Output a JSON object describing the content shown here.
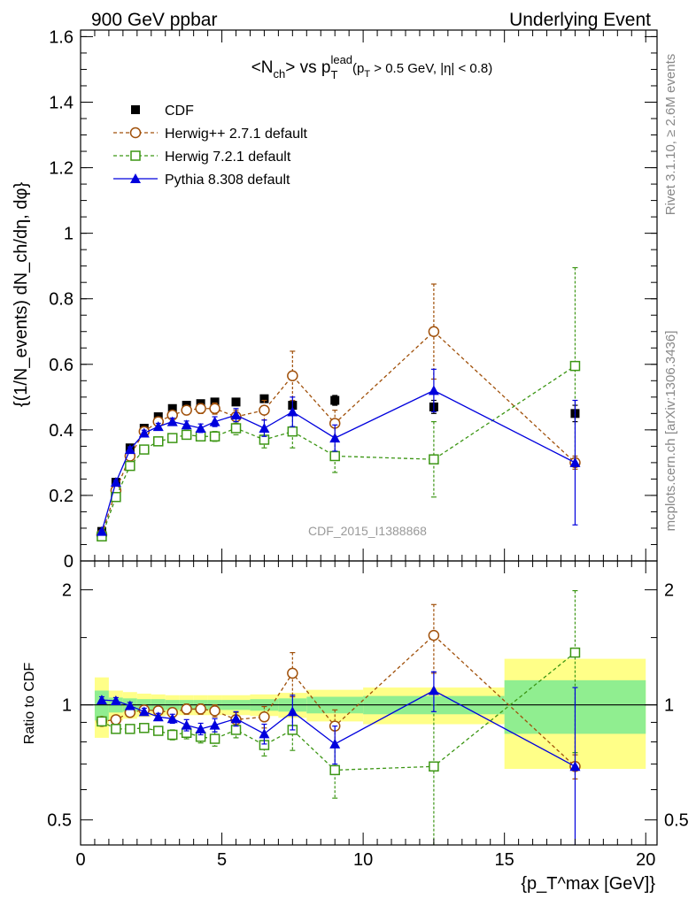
{
  "header": {
    "left": "900 GeV ppbar",
    "right": "Underlying Event"
  },
  "side_labels": {
    "rivet": "Rivet 3.1.10, ≥ 2.6M events",
    "mcplots": "mcplots.cern.ch [arXiv:1306.3436]"
  },
  "colors": {
    "cdf": "#000000",
    "herwigpp": "#a0500a",
    "herwig7": "#3c9614",
    "pythia": "#0000dd",
    "band_inner": "#90ee90",
    "band_outer": "#ffff88"
  },
  "chart_data": [
    {
      "type": "scatter",
      "panel": "main",
      "title": {
        "pre": "<N",
        "sub1": "ch",
        "mid": "> vs p",
        "sub2": "T",
        "sup2": "lead",
        "open": "(p",
        "sub3": "T",
        "post": " > 0.5 GeV, |η| < 0.8)"
      },
      "ylabel": "{(1/N_events) dN_ch/dη, dφ}",
      "ylim": [
        0,
        1.62
      ],
      "xlim": [
        0,
        20.4
      ],
      "yticks": [
        "0",
        "0.2",
        "0.4",
        "0.6",
        "0.8",
        "1",
        "1.2",
        "1.4",
        "1.6"
      ],
      "watermark": "CDF_2015_I1388868",
      "legend_position": "top-left",
      "series": [
        {
          "name": "CDF",
          "marker": "filled-square",
          "x": [
            0.75,
            1.25,
            1.75,
            2.25,
            2.75,
            3.25,
            3.75,
            4.25,
            4.75,
            5.5,
            6.5,
            7.5,
            9.0,
            12.5,
            17.5
          ],
          "y": [
            0.09,
            0.24,
            0.345,
            0.405,
            0.44,
            0.465,
            0.475,
            0.48,
            0.485,
            0.485,
            0.495,
            0.475,
            0.49,
            0.47,
            0.45
          ],
          "err": [
            0.005,
            0.005,
            0.005,
            0.005,
            0.005,
            0.005,
            0.005,
            0.005,
            0.005,
            0.005,
            0.01,
            0.01,
            0.015,
            0.02,
            0.025
          ]
        },
        {
          "name": "Herwig++ 2.7.1 default",
          "marker": "open-circle",
          "x": [
            0.75,
            1.25,
            1.75,
            2.25,
            2.75,
            3.25,
            3.75,
            4.25,
            4.75,
            5.5,
            6.5,
            7.5,
            9.0,
            12.5,
            17.5
          ],
          "y": [
            0.08,
            0.215,
            0.32,
            0.395,
            0.425,
            0.445,
            0.46,
            0.465,
            0.465,
            0.44,
            0.46,
            0.565,
            0.42,
            0.7,
            0.3
          ],
          "err": [
            0.005,
            0.007,
            0.008,
            0.01,
            0.01,
            0.012,
            0.014,
            0.015,
            0.017,
            0.02,
            0.03,
            0.075,
            0.04,
            0.145,
            0.02
          ]
        },
        {
          "name": "Herwig 7.2.1 default",
          "marker": "open-square",
          "x": [
            0.75,
            1.25,
            1.75,
            2.25,
            2.75,
            3.25,
            3.75,
            4.25,
            4.75,
            5.5,
            6.5,
            7.5,
            9.0,
            12.5,
            17.5
          ],
          "y": [
            0.075,
            0.195,
            0.29,
            0.34,
            0.365,
            0.375,
            0.385,
            0.38,
            0.38,
            0.405,
            0.37,
            0.395,
            0.32,
            0.31,
            0.595
          ],
          "err": [
            0.005,
            0.006,
            0.008,
            0.009,
            0.01,
            0.011,
            0.012,
            0.013,
            0.015,
            0.02,
            0.025,
            0.05,
            0.05,
            0.115,
            0.3
          ]
        },
        {
          "name": "Pythia 8.308 default",
          "marker": "filled-triangle",
          "x": [
            0.75,
            1.25,
            1.75,
            2.25,
            2.75,
            3.25,
            3.75,
            4.25,
            4.75,
            5.5,
            6.5,
            7.5,
            9.0,
            12.5,
            17.5
          ],
          "y": [
            0.09,
            0.24,
            0.34,
            0.39,
            0.41,
            0.425,
            0.415,
            0.405,
            0.425,
            0.445,
            0.405,
            0.455,
            0.375,
            0.52,
            0.3
          ],
          "err": [
            0.005,
            0.006,
            0.008,
            0.009,
            0.01,
            0.011,
            0.012,
            0.013,
            0.015,
            0.02,
            0.025,
            0.045,
            0.04,
            0.065,
            0.19
          ]
        }
      ]
    },
    {
      "type": "scatter",
      "panel": "ratio",
      "ylabel": "Ratio to CDF",
      "xlabel": "{p_T^max [GeV]}",
      "xlim": [
        0,
        20.4
      ],
      "ylim": [
        0.43,
        2.38
      ],
      "log_y": true,
      "xticks": [
        "0",
        "5",
        "10",
        "15",
        "20"
      ],
      "yticks": [
        "0.5",
        "1",
        "2"
      ],
      "bands": {
        "x_lo": [
          0.5,
          1.0,
          1.5,
          2.0,
          2.5,
          3.0,
          3.5,
          4.0,
          4.5,
          5.0,
          6.0,
          7.0,
          8.0,
          10.0,
          15.0
        ],
        "x_hi": [
          1.0,
          1.5,
          2.0,
          2.5,
          3.0,
          3.5,
          4.0,
          4.5,
          5.0,
          6.0,
          7.0,
          8.0,
          10.0,
          15.0,
          20.0
        ],
        "inner": [
          0.09,
          0.045,
          0.04,
          0.035,
          0.035,
          0.03,
          0.03,
          0.03,
          0.03,
          0.03,
          0.035,
          0.04,
          0.05,
          0.055,
          0.16
        ],
        "outer": [
          0.18,
          0.09,
          0.08,
          0.07,
          0.065,
          0.06,
          0.06,
          0.06,
          0.06,
          0.06,
          0.065,
          0.075,
          0.095,
          0.11,
          0.32
        ]
      },
      "series": [
        {
          "name": "Herwig++ 2.7.1 default",
          "x": [
            0.75,
            1.25,
            1.75,
            2.25,
            2.75,
            3.25,
            3.75,
            4.25,
            4.75,
            5.5,
            6.5,
            7.5,
            9.0,
            12.5,
            17.5
          ],
          "y": [
            0.905,
            0.915,
            0.955,
            0.97,
            0.965,
            0.955,
            0.975,
            0.975,
            0.965,
            0.915,
            0.93,
            1.21,
            0.88,
            1.52,
            0.69
          ],
          "err": [
            0.02,
            0.02,
            0.02,
            0.02,
            0.02,
            0.025,
            0.03,
            0.03,
            0.035,
            0.04,
            0.06,
            0.16,
            0.09,
            0.31,
            0.05
          ]
        },
        {
          "name": "Herwig 7.2.1 default",
          "x": [
            0.75,
            1.25,
            1.75,
            2.25,
            2.75,
            3.25,
            3.75,
            4.25,
            4.75,
            5.5,
            6.5,
            7.5,
            9.0,
            12.5,
            17.5
          ],
          "y": [
            0.905,
            0.865,
            0.865,
            0.87,
            0.855,
            0.835,
            0.845,
            0.825,
            0.815,
            0.86,
            0.785,
            0.86,
            0.675,
            0.69,
            1.37
          ],
          "err": [
            0.02,
            0.02,
            0.02,
            0.02,
            0.02,
            0.025,
            0.03,
            0.03,
            0.035,
            0.04,
            0.05,
            0.1,
            0.105,
            0.31,
            0.62
          ]
        },
        {
          "name": "Pythia 8.308 default",
          "x": [
            0.75,
            1.25,
            1.75,
            2.25,
            2.75,
            3.25,
            3.75,
            4.25,
            4.75,
            5.5,
            6.5,
            7.5,
            9.0,
            12.5,
            17.5
          ],
          "y": [
            1.03,
            1.025,
            0.995,
            0.96,
            0.93,
            0.92,
            0.885,
            0.865,
            0.885,
            0.92,
            0.84,
            0.96,
            0.79,
            1.09,
            0.69
          ],
          "err": [
            0.02,
            0.02,
            0.02,
            0.02,
            0.02,
            0.025,
            0.03,
            0.03,
            0.035,
            0.04,
            0.05,
            0.1,
            0.09,
            0.13,
            0.42
          ]
        }
      ]
    }
  ]
}
